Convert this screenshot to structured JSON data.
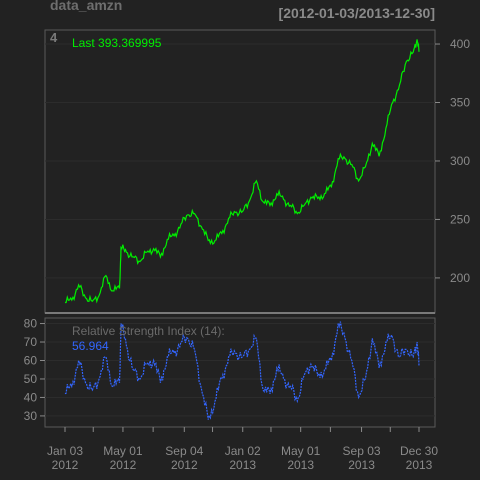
{
  "header": {
    "symbol": "data_amzn",
    "date_range": "[2012-01-03/2013-12-30]",
    "panel_id": "4"
  },
  "colors": {
    "background": "#222222",
    "panel_border": "#5a5a5a",
    "grid": "#2c2c2c",
    "price_line": "#00ee00",
    "rsi_line": "#3366ff",
    "axis_text": "#8a8a8a",
    "title_text": "#6e6e6e"
  },
  "chart_data": [
    {
      "type": "line",
      "name": "price",
      "legend_label": "Last 393.369995",
      "ylim": [
        170,
        412
      ],
      "y_ticks": [
        200,
        250,
        300,
        350,
        400
      ],
      "x_range": [
        "2012-01-03",
        "2013-12-30"
      ],
      "points": [
        [
          "2012-01-03",
          179
        ],
        [
          "2012-01-17",
          181
        ],
        [
          "2012-01-31",
          194
        ],
        [
          "2012-02-14",
          183
        ],
        [
          "2012-02-28",
          180
        ],
        [
          "2012-03-13",
          185
        ],
        [
          "2012-03-27",
          202
        ],
        [
          "2012-04-10",
          189
        ],
        [
          "2012-04-24",
          191
        ],
        [
          "2012-04-27",
          226
        ],
        [
          "2012-05-08",
          222
        ],
        [
          "2012-05-22",
          218
        ],
        [
          "2012-06-05",
          214
        ],
        [
          "2012-06-19",
          222
        ],
        [
          "2012-07-03",
          225
        ],
        [
          "2012-07-17",
          218
        ],
        [
          "2012-07-31",
          233
        ],
        [
          "2012-08-14",
          236
        ],
        [
          "2012-08-28",
          246
        ],
        [
          "2012-09-11",
          254
        ],
        [
          "2012-09-25",
          255
        ],
        [
          "2012-10-09",
          244
        ],
        [
          "2012-10-23",
          232
        ],
        [
          "2012-11-06",
          232
        ],
        [
          "2012-11-20",
          238
        ],
        [
          "2012-12-04",
          251
        ],
        [
          "2012-12-18",
          256
        ],
        [
          "2013-01-02",
          257
        ],
        [
          "2013-01-16",
          266
        ],
        [
          "2013-01-30",
          283
        ],
        [
          "2013-02-13",
          265
        ],
        [
          "2013-02-27",
          262
        ],
        [
          "2013-03-13",
          272
        ],
        [
          "2013-03-27",
          267
        ],
        [
          "2013-04-10",
          262
        ],
        [
          "2013-04-24",
          255
        ],
        [
          "2013-05-08",
          262
        ],
        [
          "2013-05-22",
          269
        ],
        [
          "2013-06-05",
          268
        ],
        [
          "2013-06-19",
          272
        ],
        [
          "2013-07-03",
          278
        ],
        [
          "2013-07-17",
          302
        ],
        [
          "2013-07-31",
          302
        ],
        [
          "2013-08-14",
          297
        ],
        [
          "2013-08-28",
          283
        ],
        [
          "2013-09-11",
          295
        ],
        [
          "2013-09-25",
          315
        ],
        [
          "2013-10-09",
          304
        ],
        [
          "2013-10-23",
          328
        ],
        [
          "2013-11-06",
          350
        ],
        [
          "2013-11-20",
          365
        ],
        [
          "2013-12-04",
          385
        ],
        [
          "2013-12-18",
          393
        ],
        [
          "2013-12-26",
          404
        ],
        [
          "2013-12-30",
          393.37
        ]
      ]
    },
    {
      "type": "line",
      "name": "rsi",
      "legend_label": "Relative Strength Index (14):",
      "legend_value": "56.964",
      "ylim": [
        24,
        83
      ],
      "y_ticks": [
        30,
        40,
        50,
        60,
        70,
        80
      ],
      "x_range": [
        "2012-01-03",
        "2013-12-30"
      ],
      "points": [
        [
          "2012-01-03",
          42
        ],
        [
          "2012-01-17",
          46
        ],
        [
          "2012-01-31",
          60
        ],
        [
          "2012-02-14",
          48
        ],
        [
          "2012-02-28",
          44
        ],
        [
          "2012-03-13",
          50
        ],
        [
          "2012-03-27",
          62
        ],
        [
          "2012-04-10",
          46
        ],
        [
          "2012-04-24",
          48
        ],
        [
          "2012-04-27",
          80
        ],
        [
          "2012-05-08",
          68
        ],
        [
          "2012-05-22",
          55
        ],
        [
          "2012-06-05",
          50
        ],
        [
          "2012-06-19",
          58
        ],
        [
          "2012-07-03",
          60
        ],
        [
          "2012-07-17",
          48
        ],
        [
          "2012-07-31",
          62
        ],
        [
          "2012-08-14",
          64
        ],
        [
          "2012-08-28",
          70
        ],
        [
          "2012-09-11",
          72
        ],
        [
          "2012-09-25",
          66
        ],
        [
          "2012-10-09",
          45
        ],
        [
          "2012-10-23",
          28
        ],
        [
          "2012-11-06",
          38
        ],
        [
          "2012-11-20",
          50
        ],
        [
          "2012-12-04",
          62
        ],
        [
          "2012-12-18",
          64
        ],
        [
          "2013-01-02",
          62
        ],
        [
          "2013-01-16",
          66
        ],
        [
          "2013-01-30",
          72
        ],
        [
          "2013-02-13",
          44
        ],
        [
          "2013-02-27",
          42
        ],
        [
          "2013-03-13",
          56
        ],
        [
          "2013-03-27",
          50
        ],
        [
          "2013-04-10",
          46
        ],
        [
          "2013-04-24",
          38
        ],
        [
          "2013-05-08",
          52
        ],
        [
          "2013-05-22",
          58
        ],
        [
          "2013-06-05",
          52
        ],
        [
          "2013-06-19",
          55
        ],
        [
          "2013-07-03",
          60
        ],
        [
          "2013-07-17",
          80
        ],
        [
          "2013-07-31",
          72
        ],
        [
          "2013-08-14",
          60
        ],
        [
          "2013-08-28",
          40
        ],
        [
          "2013-09-11",
          50
        ],
        [
          "2013-09-25",
          72
        ],
        [
          "2013-10-09",
          56
        ],
        [
          "2013-10-23",
          70
        ],
        [
          "2013-11-06",
          72
        ],
        [
          "2013-11-20",
          62
        ],
        [
          "2013-12-04",
          66
        ],
        [
          "2013-12-18",
          62
        ],
        [
          "2013-12-26",
          70
        ],
        [
          "2013-12-30",
          56.964
        ]
      ]
    }
  ],
  "x_axis": {
    "ticks": [
      {
        "date": "2012-01-03",
        "label1": "Jan 03",
        "label2": "2012",
        "label": true
      },
      {
        "date": "2012-03-01",
        "label": false
      },
      {
        "date": "2012-05-01",
        "label1": "May 01",
        "label2": "2012",
        "label": true
      },
      {
        "date": "2012-07-02",
        "label": false
      },
      {
        "date": "2012-09-04",
        "label1": "Sep 04",
        "label2": "2012",
        "label": true
      },
      {
        "date": "2012-11-01",
        "label": false
      },
      {
        "date": "2013-01-02",
        "label1": "Jan 02",
        "label2": "2013",
        "label": true
      },
      {
        "date": "2013-03-01",
        "label": false
      },
      {
        "date": "2013-05-01",
        "label1": "May 01",
        "label2": "2013",
        "label": true
      },
      {
        "date": "2013-07-01",
        "label": false
      },
      {
        "date": "2013-09-03",
        "label1": "Sep 03",
        "label2": "2013",
        "label": true
      },
      {
        "date": "2013-11-01",
        "label": false
      },
      {
        "date": "2013-12-30",
        "label1": "Dec 30",
        "label2": "2013",
        "label": true
      }
    ]
  }
}
